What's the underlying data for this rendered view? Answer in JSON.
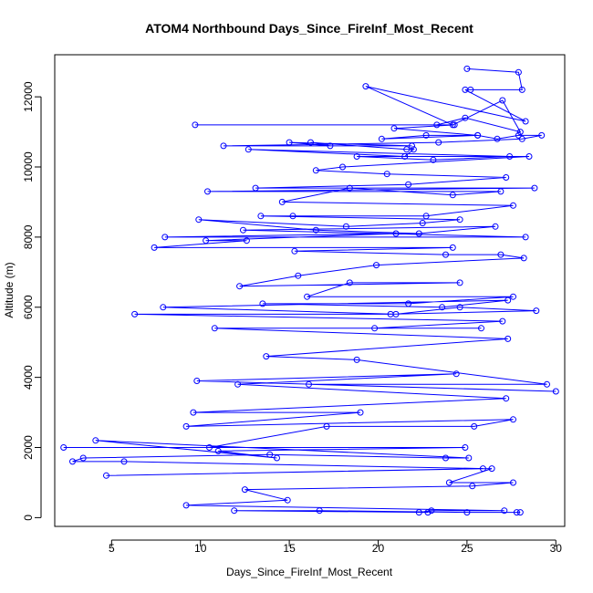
{
  "chart_data": {
    "type": "scatter",
    "mode": "lines+markers",
    "title": "ATOM4 Northbound Days_Since_FireInf_Most_Recent",
    "xlabel": "Days_Since_FireInf_Most_Recent",
    "ylabel": "Altitude (m)",
    "xlim": [
      1.8,
      30.5
    ],
    "ylim": [
      -250,
      13200
    ],
    "xticks": [
      5,
      10,
      15,
      20,
      25,
      30
    ],
    "yticks": [
      0,
      2000,
      4000,
      6000,
      8000,
      10000,
      12000
    ],
    "grid": false,
    "legend": "none",
    "series": [
      {
        "color": "#0000ff",
        "marker": "open-circle",
        "x": [
          25.0,
          27.9,
          28.1,
          25.2,
          24.9,
          28.3,
          19.3,
          24.2,
          27.0,
          28.0,
          24.9,
          23.3,
          9.7,
          24.3,
          20.9,
          25.6,
          22.7,
          20.2,
          25.6,
          26.7,
          27.9,
          29.2,
          28.1,
          23.4,
          11.3,
          21.9,
          15.0,
          17.3,
          16.2,
          21.6,
          22.0,
          21.5,
          12.7,
          27.4,
          23.1,
          18.8,
          28.5,
          18.0,
          16.5,
          20.5,
          27.2,
          21.7,
          13.1,
          28.8,
          10.4,
          26.9,
          24.2,
          18.4,
          14.6,
          27.6,
          22.7,
          15.2,
          13.4,
          24.6,
          22.5,
          18.2,
          9.9,
          16.5,
          22.3,
          26.6,
          12.4,
          28.3,
          8.0,
          21.0,
          10.3,
          12.6,
          7.4,
          24.2,
          15.3,
          23.8,
          26.9,
          28.2,
          19.9,
          15.5,
          12.2,
          24.6,
          18.4,
          16.0,
          27.6,
          21.7,
          13.5,
          23.6,
          27.3,
          7.9,
          21.0,
          24.6,
          28.9,
          20.7,
          6.3,
          27.0,
          19.8,
          25.8,
          10.8,
          27.3,
          13.7,
          18.8,
          29.5,
          16.1,
          30.0,
          9.8,
          24.4,
          12.1,
          27.2,
          9.6,
          19.0,
          9.2,
          27.6,
          25.4,
          17.1,
          10.5,
          2.3,
          24.9,
          11.0,
          14.3,
          4.1,
          25.1,
          23.8,
          13.9,
          3.4,
          2.8,
          5.7,
          25.9,
          4.7,
          26.4,
          24.0,
          27.6,
          25.3,
          12.5,
          14.9,
          9.2,
          27.1,
          23.0,
          22.3,
          22.8,
          11.9,
          16.7,
          25.0,
          27.8,
          28.0
        ],
        "y": [
          12800,
          12700,
          12200,
          12200,
          12200,
          11300,
          12300,
          11200,
          11900,
          11000,
          11400,
          11200,
          11200,
          11200,
          11100,
          10900,
          10900,
          10800,
          10900,
          10800,
          10900,
          10900,
          10800,
          10700,
          10600,
          10600,
          10700,
          10600,
          10700,
          10500,
          10500,
          10300,
          10500,
          10300,
          10200,
          10300,
          10300,
          10000,
          9900,
          9800,
          9700,
          9500,
          9400,
          9400,
          9300,
          9300,
          9200,
          9400,
          9000,
          8900,
          8600,
          8600,
          8600,
          8500,
          8400,
          8300,
          8500,
          8200,
          8100,
          8300,
          8200,
          8000,
          8000,
          8100,
          7900,
          7900,
          7700,
          7700,
          7600,
          7500,
          7500,
          7400,
          7200,
          6900,
          6600,
          6700,
          6700,
          6300,
          6300,
          6100,
          6100,
          6000,
          6200,
          6000,
          5800,
          6000,
          5900,
          5800,
          5800,
          5600,
          5400,
          5400,
          5400,
          5100,
          4600,
          4500,
          3800,
          3800,
          3600,
          3900,
          4100,
          3800,
          3400,
          3000,
          3000,
          2600,
          2800,
          2600,
          2600,
          2000,
          2000,
          2000,
          1900,
          1700,
          2200,
          1700,
          1700,
          1800,
          1700,
          1600,
          1600,
          1400,
          1200,
          1400,
          1000,
          1000,
          900,
          800,
          500,
          350,
          200,
          200,
          150,
          150,
          200,
          200,
          150,
          150,
          150
        ]
      }
    ]
  }
}
